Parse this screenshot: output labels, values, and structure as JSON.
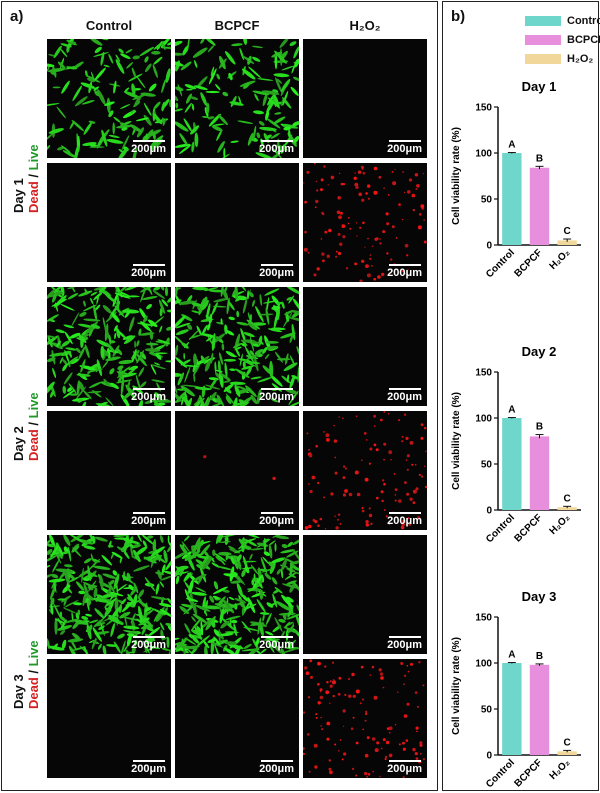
{
  "panel_a": {
    "letter": "a)",
    "columns": [
      "Control",
      "BCPCF",
      "H₂O₂"
    ],
    "rows": [
      {
        "day": "Day 1",
        "dead": "Dead",
        "slash": " / ",
        "live": "Live"
      },
      {
        "day": "Day 2",
        "dead": "Dead",
        "slash": " / ",
        "live": "Live"
      },
      {
        "day": "Day 3",
        "dead": "Dead",
        "slash": " / ",
        "live": "Live"
      }
    ],
    "scale_bar": "200μm"
  },
  "panel_b": {
    "letter": "b)",
    "legend": [
      {
        "name": "Control",
        "color": "#6fd6cc"
      },
      {
        "name": "BCPCF",
        "color": "#e78fdc"
      },
      {
        "name": "H₂O₂",
        "color": "#f2d79b"
      }
    ]
  },
  "chart_data": [
    {
      "type": "bar",
      "title": "Day 1",
      "categories": [
        "Control",
        "BCPCF",
        "H₂O₂"
      ],
      "values": [
        100,
        84,
        5
      ],
      "errors": [
        0.5,
        1.5,
        1.5
      ],
      "letters": [
        "A",
        "B",
        "C"
      ],
      "colors": [
        "#6fd6cc",
        "#e78fdc",
        "#f2d79b"
      ],
      "ylabel": "Cell viability rate (%)",
      "ylim": [
        0,
        150
      ],
      "yticks": [
        0,
        50,
        100,
        150
      ]
    },
    {
      "type": "bar",
      "title": "Day 2",
      "categories": [
        "Control",
        "BCPCF",
        "H₂O₂"
      ],
      "values": [
        100,
        80,
        3
      ],
      "errors": [
        0.5,
        2,
        1
      ],
      "letters": [
        "A",
        "B",
        "C"
      ],
      "colors": [
        "#6fd6cc",
        "#e78fdc",
        "#f2d79b"
      ],
      "ylabel": "Cell viability rate (%)",
      "ylim": [
        0,
        150
      ],
      "yticks": [
        0,
        50,
        100,
        150
      ]
    },
    {
      "type": "bar",
      "title": "Day 3",
      "categories": [
        "Control",
        "BCPCF",
        "H₂O₂"
      ],
      "values": [
        100,
        98,
        4
      ],
      "errors": [
        0.5,
        1,
        1
      ],
      "letters": [
        "A",
        "B",
        "C"
      ],
      "colors": [
        "#6fd6cc",
        "#e78fdc",
        "#f2d79b"
      ],
      "ylabel": "Cell viability rate (%)",
      "ylim": [
        0,
        150
      ],
      "yticks": [
        0,
        50,
        100,
        150
      ]
    }
  ]
}
